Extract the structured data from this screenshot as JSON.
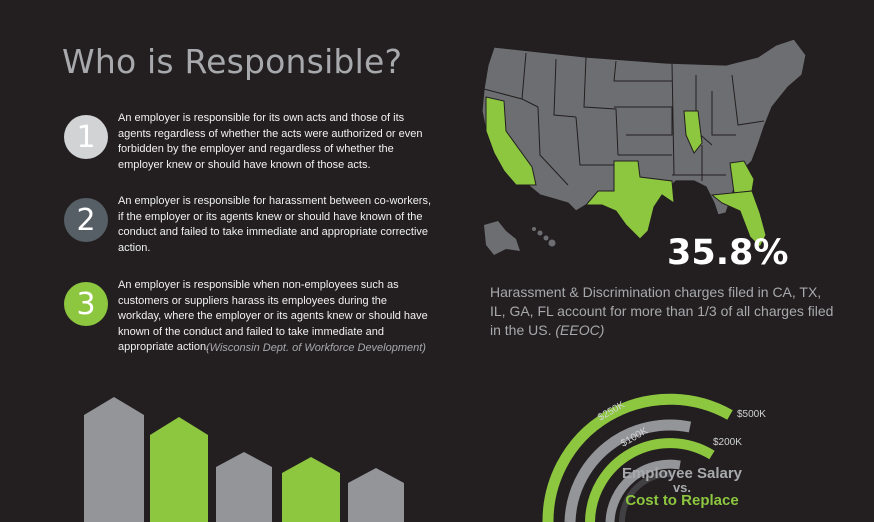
{
  "title": "Who is Responsible?",
  "points": [
    {
      "number": "1",
      "text": "An employer is responsible for its own acts and those of its agents regardless of whether the acts were authorized or even forbidden by the employer and regardless of whether the employer knew or should have known of those acts."
    },
    {
      "number": "2",
      "text": "An employer is responsible for harassment between co-workers, if the employer or its agents knew or should have known of the conduct and failed to take immediate and appropriate corrective action."
    },
    {
      "number": "3",
      "text": "An employer is responsible when non-employees such as customers or suppliers harass its employees during the workday, where the employer or its agents knew or should have known of the conduct and failed to take immediate and appropriate action."
    }
  ],
  "source": "(Wisconsin Dept. of Workforce Development)",
  "map": {
    "percentage": "35.8%",
    "caption": "Harassment & Discrimination charges filed in CA, TX, IL, GA, FL account for more than 1/3 of all charges filed in the US.",
    "caption_source": "(EEOC)",
    "highlight_color": "#8dc63f",
    "base_color": "#6d6e71"
  },
  "salary": {
    "title": "Employee Salary",
    "vs": "vs.",
    "subtitle": "Cost to Replace",
    "labels": {
      "l250": "$250K",
      "l100": "$100K",
      "l500": "$500K",
      "l200": "$200K"
    }
  },
  "colors": {
    "green": "#8dc63f",
    "gray": "#939598",
    "dark": "#231f20"
  }
}
